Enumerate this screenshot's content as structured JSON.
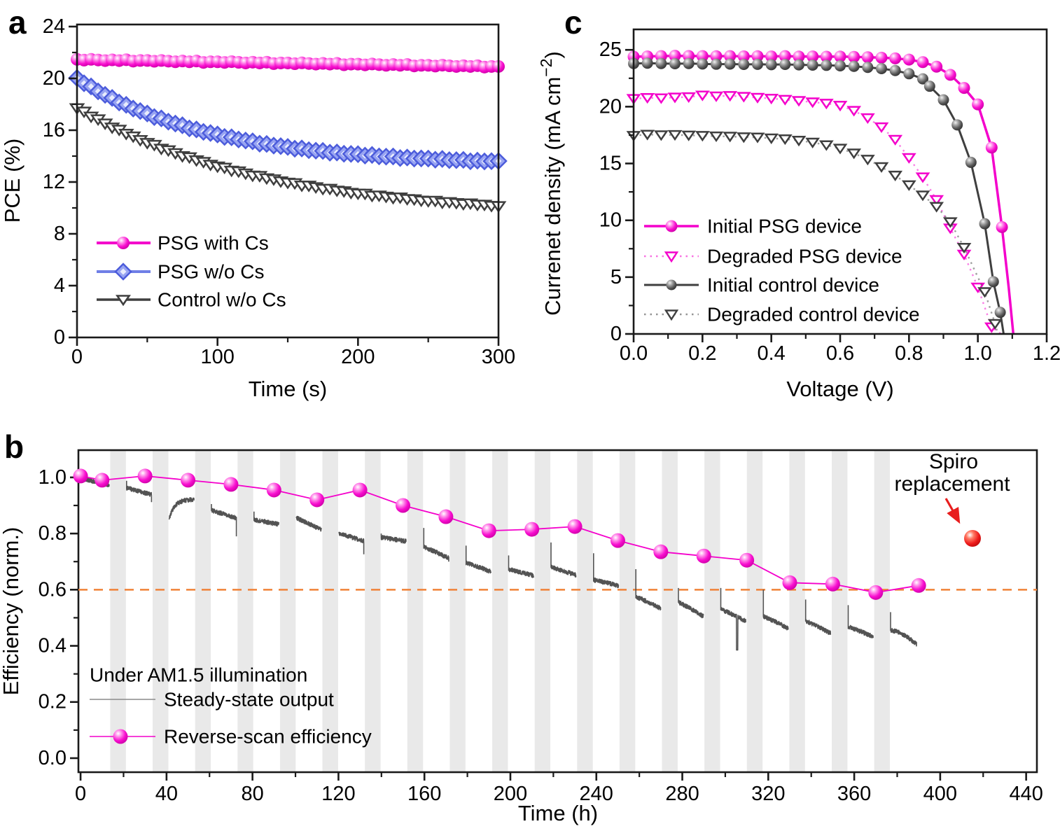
{
  "chart_data": [
    {
      "id": "a",
      "panel_label": "a",
      "type": "line",
      "xlabel": "Time (s)",
      "ylabel": "PCE (%)",
      "xlim": [
        0,
        300
      ],
      "ylim": [
        0,
        24.16
      ],
      "xticks": [
        {
          "v": 0,
          "label": "0"
        },
        {
          "v": 100,
          "label": "100"
        },
        {
          "v": 200,
          "label": "200"
        },
        {
          "v": 300,
          "label": "300"
        }
      ],
      "xminor": [
        50,
        150,
        250
      ],
      "yticks": [
        {
          "v": 0,
          "label": "0"
        },
        {
          "v": 4,
          "label": "4"
        },
        {
          "v": 8,
          "label": "8"
        },
        {
          "v": 12,
          "label": "12"
        },
        {
          "v": 16,
          "label": "16"
        },
        {
          "v": 20,
          "label": "20"
        },
        {
          "v": 24,
          "label": "24"
        }
      ],
      "yminor": [
        2,
        6,
        10,
        14,
        18,
        22
      ],
      "grid": false,
      "legend_position": "lower-left-inside",
      "series": [
        {
          "name": "PSG with Cs",
          "color": "#F400CB",
          "marker": "sphere-magenta",
          "marker_size": 9,
          "line_width": 4,
          "style": "solid",
          "x_start": 0,
          "x_step": 5,
          "y": [
            21.47,
            21.41,
            21.47,
            21.42,
            21.37,
            21.43,
            21.37,
            21.44,
            21.33,
            21.38,
            21.38,
            21.32,
            21.38,
            21.33,
            21.28,
            21.34,
            21.28,
            21.34,
            21.23,
            21.28,
            21.28,
            21.23,
            21.29,
            21.24,
            21.19,
            21.25,
            21.19,
            21.25,
            21.14,
            21.19,
            21.19,
            21.13,
            21.2,
            21.15,
            21.1,
            21.16,
            21.1,
            21.16,
            21.05,
            21.1,
            21.1,
            21.04,
            21.11,
            21.06,
            21.01,
            21.07,
            21.01,
            21.07,
            20.96,
            21.01,
            21.01,
            20.95,
            21.02,
            20.97,
            20.92,
            20.98,
            20.92,
            20.98,
            20.87,
            20.92,
            20.92
          ]
        },
        {
          "name": "PSG w/o Cs",
          "color": "#6F7FE6",
          "marker": "diamond-blue",
          "marker_size": 11,
          "line_width": 4,
          "style": "solid",
          "x_start": 0,
          "x_step": 5,
          "y": [
            20.03,
            19.62,
            19.38,
            19.0,
            18.73,
            18.49,
            18.14,
            17.96,
            17.67,
            17.48,
            17.29,
            17.01,
            16.91,
            16.66,
            16.51,
            16.38,
            16.14,
            16.06,
            15.87,
            15.78,
            15.67,
            15.48,
            15.45,
            15.28,
            15.2,
            15.14,
            14.96,
            14.94,
            14.81,
            14.77,
            14.71,
            14.57,
            14.59,
            14.46,
            14.42,
            14.4,
            14.26,
            14.28,
            14.18,
            14.17,
            14.15,
            14.04,
            14.09,
            13.98,
            13.96,
            13.97,
            13.85,
            13.89,
            13.81,
            13.82,
            13.81,
            13.72,
            13.78,
            13.69,
            13.69,
            13.71,
            13.6,
            13.65,
            13.59,
            13.61,
            13.62
          ]
        },
        {
          "name": "Control w/o Cs",
          "color": "#3F3F3F",
          "marker": "triangle-open-dark",
          "marker_size": 9,
          "line_width": 3.5,
          "style": "solid",
          "x_start": 0,
          "x_step": 5,
          "y": [
            17.68,
            17.42,
            17.03,
            16.82,
            16.5,
            16.19,
            16.02,
            15.71,
            15.5,
            15.22,
            15.0,
            14.85,
            14.55,
            14.43,
            14.21,
            13.98,
            13.89,
            13.66,
            13.53,
            13.32,
            13.18,
            13.09,
            12.86,
            12.8,
            12.64,
            12.48,
            12.45,
            12.27,
            12.19,
            12.03,
            11.93,
            11.89,
            11.71,
            11.7,
            11.58,
            11.45,
            11.46,
            11.32,
            11.27,
            11.15,
            11.09,
            11.08,
            10.92,
            10.94,
            10.85,
            10.75,
            10.79,
            10.67,
            10.65,
            10.55,
            10.51,
            10.53,
            10.39,
            10.43,
            10.36,
            10.28,
            10.33,
            10.23,
            10.23,
            10.14,
            10.12
          ]
        }
      ]
    },
    {
      "id": "c",
      "panel_label": "c",
      "type": "line",
      "xlabel": "Voltage (V)",
      "ylabel": "Currenet density (mA cm−2)",
      "ylabel_parts": {
        "pre": "Currenet density (mA cm",
        "sup": "−2",
        "post": ")"
      },
      "xlim": [
        0,
        1.2
      ],
      "ylim": [
        0,
        26.8
      ],
      "xticks": [
        {
          "v": 0,
          "label": "0.0"
        },
        {
          "v": 0.2,
          "label": "0.2"
        },
        {
          "v": 0.4,
          "label": "0.4"
        },
        {
          "v": 0.6,
          "label": "0.6"
        },
        {
          "v": 0.8,
          "label": "0.8"
        },
        {
          "v": 1.0,
          "label": "1.0"
        },
        {
          "v": 1.2,
          "label": "1.2"
        }
      ],
      "xminor": [
        0.1,
        0.3,
        0.5,
        0.7,
        0.9,
        1.1
      ],
      "yticks": [
        {
          "v": 0,
          "label": "0"
        },
        {
          "v": 5,
          "label": "5"
        },
        {
          "v": 10,
          "label": "10"
        },
        {
          "v": 15,
          "label": "15"
        },
        {
          "v": 20,
          "label": "20"
        },
        {
          "v": 25,
          "label": "25"
        }
      ],
      "yminor": [
        2.5,
        7.5,
        12.5,
        17.5,
        22.5
      ],
      "grid": false,
      "legend_position": "lower-left-inside",
      "series": [
        {
          "name": "Initial PSG device",
          "color": "#F400CB",
          "marker": "sphere-magenta",
          "marker_size": 8.5,
          "line_width": 3.5,
          "style": "solid",
          "skip_marker_last": 2,
          "x": [
            0,
            0.04,
            0.08,
            0.12,
            0.16,
            0.2,
            0.24,
            0.28,
            0.32,
            0.36,
            0.4,
            0.44,
            0.48,
            0.52,
            0.56,
            0.6,
            0.64,
            0.68,
            0.72,
            0.76,
            0.8,
            0.84,
            0.88,
            0.92,
            0.96,
            1.0,
            1.04,
            1.07,
            1.09,
            1.103
          ],
          "y": [
            24.4,
            24.42,
            24.45,
            24.48,
            24.46,
            24.45,
            24.44,
            24.45,
            24.43,
            24.44,
            24.42,
            24.45,
            24.41,
            24.42,
            24.4,
            24.41,
            24.38,
            24.35,
            24.31,
            24.25,
            24.14,
            23.92,
            23.52,
            22.8,
            21.65,
            20.2,
            16.4,
            9.4,
            4.0,
            0.0
          ]
        },
        {
          "name": "Degraded PSG device",
          "color": "#F400CB",
          "marker": "triangle-open-magenta",
          "marker_size": 8,
          "line_width": 2.4,
          "style": "dotted",
          "skip_marker_last": 1,
          "x": [
            0,
            0.04,
            0.08,
            0.12,
            0.16,
            0.2,
            0.24,
            0.28,
            0.32,
            0.36,
            0.4,
            0.44,
            0.48,
            0.52,
            0.56,
            0.6,
            0.64,
            0.68,
            0.72,
            0.76,
            0.8,
            0.84,
            0.88,
            0.92,
            0.96,
            1.0,
            1.04,
            1.068
          ],
          "y": [
            20.7,
            20.78,
            20.75,
            20.82,
            20.85,
            21.0,
            20.92,
            20.96,
            20.88,
            20.8,
            20.72,
            20.62,
            20.52,
            20.4,
            20.28,
            20.1,
            19.65,
            19.0,
            18.2,
            17.1,
            15.5,
            13.8,
            11.8,
            9.3,
            7.0,
            4.1,
            0.6,
            0.0
          ]
        },
        {
          "name": "Initial control device",
          "color": "#3F3F3F",
          "marker": "sphere-dark",
          "marker_size": 8,
          "line_width": 3,
          "style": "solid",
          "skip_marker_last": 1,
          "x": [
            0,
            0.04,
            0.08,
            0.12,
            0.16,
            0.2,
            0.24,
            0.28,
            0.32,
            0.36,
            0.4,
            0.44,
            0.48,
            0.52,
            0.56,
            0.6,
            0.64,
            0.68,
            0.72,
            0.76,
            0.8,
            0.84,
            0.86,
            0.9,
            0.94,
            0.98,
            1.02,
            1.045,
            1.065,
            1.075
          ],
          "y": [
            23.8,
            23.83,
            23.8,
            23.78,
            23.8,
            23.76,
            23.74,
            23.75,
            23.72,
            23.73,
            23.7,
            23.72,
            23.68,
            23.66,
            23.64,
            23.6,
            23.55,
            23.46,
            23.35,
            23.18,
            22.9,
            22.45,
            21.8,
            20.6,
            18.4,
            15.1,
            9.7,
            4.6,
            1.9,
            0.0
          ]
        },
        {
          "name": "Degraded control device",
          "color": "#3F3F3F",
          "marker": "triangle-open-dark",
          "marker_size": 8,
          "line_width": 2.4,
          "style": "dotted",
          "skip_marker_last": 1,
          "x": [
            0,
            0.04,
            0.08,
            0.12,
            0.16,
            0.2,
            0.24,
            0.28,
            0.32,
            0.36,
            0.4,
            0.44,
            0.48,
            0.52,
            0.56,
            0.6,
            0.64,
            0.68,
            0.72,
            0.76,
            0.8,
            0.84,
            0.88,
            0.92,
            0.96,
            1.02,
            1.05,
            1.058
          ],
          "y": [
            17.45,
            17.55,
            17.5,
            17.52,
            17.48,
            17.45,
            17.4,
            17.38,
            17.32,
            17.3,
            17.22,
            17.15,
            17.02,
            16.85,
            16.62,
            16.32,
            15.9,
            15.35,
            14.7,
            13.95,
            13.1,
            12.2,
            11.2,
            9.85,
            7.6,
            3.7,
            0.9,
            0.0
          ]
        }
      ]
    },
    {
      "id": "b",
      "panel_label": "b",
      "type": "line",
      "xlabel": "Time (h)",
      "ylabel": "Efficiency (norm.)",
      "xlim": [
        0,
        445
      ],
      "ylim": [
        -0.05,
        1.097
      ],
      "xticks": [
        {
          "v": 0,
          "label": "0"
        },
        {
          "v": 40,
          "label": "40"
        },
        {
          "v": 80,
          "label": "80"
        },
        {
          "v": 120,
          "label": "120"
        },
        {
          "v": 160,
          "label": "160"
        },
        {
          "v": 200,
          "label": "200"
        },
        {
          "v": 240,
          "label": "240"
        },
        {
          "v": 280,
          "label": "280"
        },
        {
          "v": 320,
          "label": "320"
        },
        {
          "v": 360,
          "label": "360"
        },
        {
          "v": 400,
          "label": "400"
        },
        {
          "v": 440,
          "label": "440"
        }
      ],
      "xminor": [
        20,
        60,
        100,
        140,
        180,
        220,
        260,
        300,
        340,
        380,
        420
      ],
      "yticks": [
        {
          "v": 0,
          "label": "0.0"
        },
        {
          "v": 0.2,
          "label": "0.2"
        },
        {
          "v": 0.4,
          "label": "0.4"
        },
        {
          "v": 0.6,
          "label": "0.6"
        },
        {
          "v": 0.8,
          "label": "0.8"
        },
        {
          "v": 1.0,
          "label": "1.0"
        }
      ],
      "yminor": [
        0.1,
        0.3,
        0.5,
        0.7,
        0.9
      ],
      "grid": false,
      "dark_bands": {
        "start": 13.8,
        "period": 19.75,
        "width": 7.3,
        "count": 19,
        "color": "#E9E9E9"
      },
      "threshold_line": {
        "y": 0.6,
        "color": "#F08238",
        "style": "dashed"
      },
      "legend": {
        "header": "Under AM1.5 illumination",
        "steady": "Steady-state output",
        "reverse": "Reverse-scan efficiency"
      },
      "annotation": {
        "line1": "Spiro",
        "line2": "replacement",
        "color": "#E81E1E",
        "point_x": 415,
        "point_y": 0.78
      },
      "reverse_scan": {
        "name": "Reverse-scan efficiency",
        "color": "#F400CB",
        "marker": "sphere-magenta",
        "marker_size": 10.5,
        "x": [
          0,
          10,
          30,
          50,
          70,
          90,
          110,
          130,
          150,
          170,
          190,
          210,
          230,
          250,
          270,
          290,
          310,
          330,
          350,
          370,
          390
        ],
        "y": [
          1.005,
          0.99,
          1.005,
          0.99,
          0.975,
          0.955,
          0.92,
          0.955,
          0.9,
          0.86,
          0.81,
          0.815,
          0.825,
          0.775,
          0.735,
          0.72,
          0.705,
          0.625,
          0.62,
          0.59,
          0.615
        ]
      },
      "steady_color": "#4A4A4A",
      "steady_segments": [
        {
          "t0": 0.5,
          "t1": 13.3,
          "y0": 0.995,
          "y1": 0.972
        },
        {
          "t0": 21.4,
          "t1": 33.0,
          "y0": 0.962,
          "y1": 0.938,
          "spike": 0.988,
          "enddip": 0.912
        },
        {
          "t0": 41.2,
          "t1": 52.8,
          "y0": 0.852,
          "y1": 0.922,
          "shape": "rise"
        },
        {
          "t0": 60.9,
          "t1": 72.5,
          "y0": 0.882,
          "y1": 0.855,
          "spike": 0.905,
          "enddip": 0.79
        },
        {
          "t0": 80.7,
          "t1": 92.3,
          "y0": 0.848,
          "y1": 0.833,
          "spike": 0.878
        },
        {
          "t0": 100.4,
          "t1": 112.0,
          "y0": 0.855,
          "y1": 0.813
        },
        {
          "t0": 120.2,
          "t1": 131.8,
          "y0": 0.8,
          "y1": 0.773,
          "enddip": 0.726
        },
        {
          "t0": 139.9,
          "t1": 151.5,
          "y0": 0.786,
          "y1": 0.772,
          "spike": 0.8
        },
        {
          "t0": 159.7,
          "t1": 171.3,
          "y0": 0.752,
          "y1": 0.712,
          "spike": 0.82,
          "enddip": 0.7
        },
        {
          "t0": 179.4,
          "t1": 191.0,
          "y0": 0.695,
          "y1": 0.664,
          "spike": 0.757
        },
        {
          "t0": 199.2,
          "t1": 210.8,
          "y0": 0.672,
          "y1": 0.65,
          "spike": 0.722
        },
        {
          "t0": 218.9,
          "t1": 230.5,
          "y0": 0.68,
          "y1": 0.652,
          "spike": 0.768
        },
        {
          "t0": 238.7,
          "t1": 250.3,
          "y0": 0.635,
          "y1": 0.614,
          "spike": 0.73
        },
        {
          "t0": 258.4,
          "t1": 270.0,
          "y0": 0.575,
          "y1": 0.533,
          "spike": 0.673
        },
        {
          "t0": 278.2,
          "t1": 289.8,
          "y0": 0.555,
          "y1": 0.505,
          "spike": 0.606
        },
        {
          "t0": 297.9,
          "t1": 309.5,
          "y0": 0.53,
          "y1": 0.488,
          "spike": 0.606,
          "dip": {
            "t": 305.5,
            "y": 0.385
          }
        },
        {
          "t0": 317.7,
          "t1": 329.3,
          "y0": 0.505,
          "y1": 0.462,
          "spike": 0.6
        },
        {
          "t0": 337.4,
          "t1": 349.0,
          "y0": 0.488,
          "y1": 0.445,
          "spike": 0.565
        },
        {
          "t0": 357.2,
          "t1": 368.8,
          "y0": 0.468,
          "y1": 0.432,
          "spike": 0.545
        },
        {
          "t0": 376.9,
          "t1": 389.0,
          "y0": 0.455,
          "y1": 0.405,
          "spike": 0.52,
          "shape": "drop"
        }
      ]
    }
  ]
}
